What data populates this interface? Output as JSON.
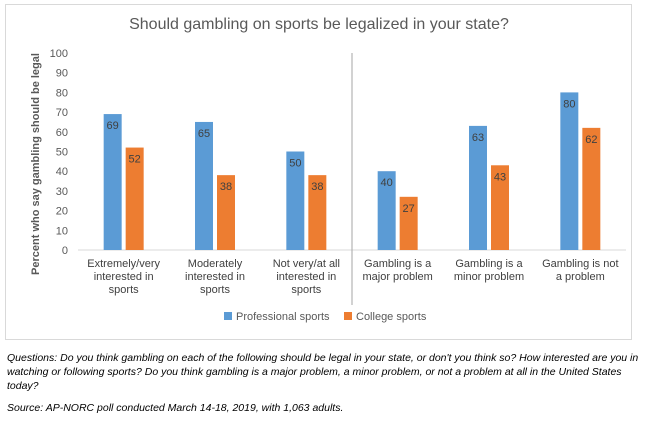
{
  "chart_data": {
    "type": "bar",
    "title": "Should gambling on sports be legalized in your state?",
    "ylabel": "Percent who say gambling should be legal",
    "xlabel": "",
    "ylim": [
      0,
      100
    ],
    "yticks": [
      0,
      10,
      20,
      30,
      40,
      50,
      60,
      70,
      80,
      90,
      100
    ],
    "grid": false,
    "legend_position": "bottom",
    "categories": [
      [
        "Extremely/very",
        "interested in",
        "sports"
      ],
      [
        "Moderately",
        "interested in",
        "sports"
      ],
      [
        "Not very/at all",
        "interested in",
        "sports"
      ],
      [
        "Gambling is a",
        "major problem"
      ],
      [
        "Gambling is a",
        "minor problem"
      ],
      [
        "Gambling is not",
        "a problem"
      ]
    ],
    "series": [
      {
        "name": "Professional sports",
        "values": [
          69,
          65,
          50,
          40,
          63,
          80
        ],
        "color": "#5b9bd5"
      },
      {
        "name": "College sports",
        "values": [
          52,
          38,
          38,
          27,
          43,
          62
        ],
        "color": "#ed7d31"
      }
    ],
    "group_divider_after_index": 2
  },
  "notes": {
    "questions": "Questions: Do you think gambling on each of the following should be legal in your state, or don't you think so? How interested are you in watching or following sports? Do you think gambling is a major problem, a minor problem, or not a problem at all in the United States today?",
    "source": "Source: AP-NORC poll conducted March 14-18, 2019, with 1,063 adults."
  }
}
